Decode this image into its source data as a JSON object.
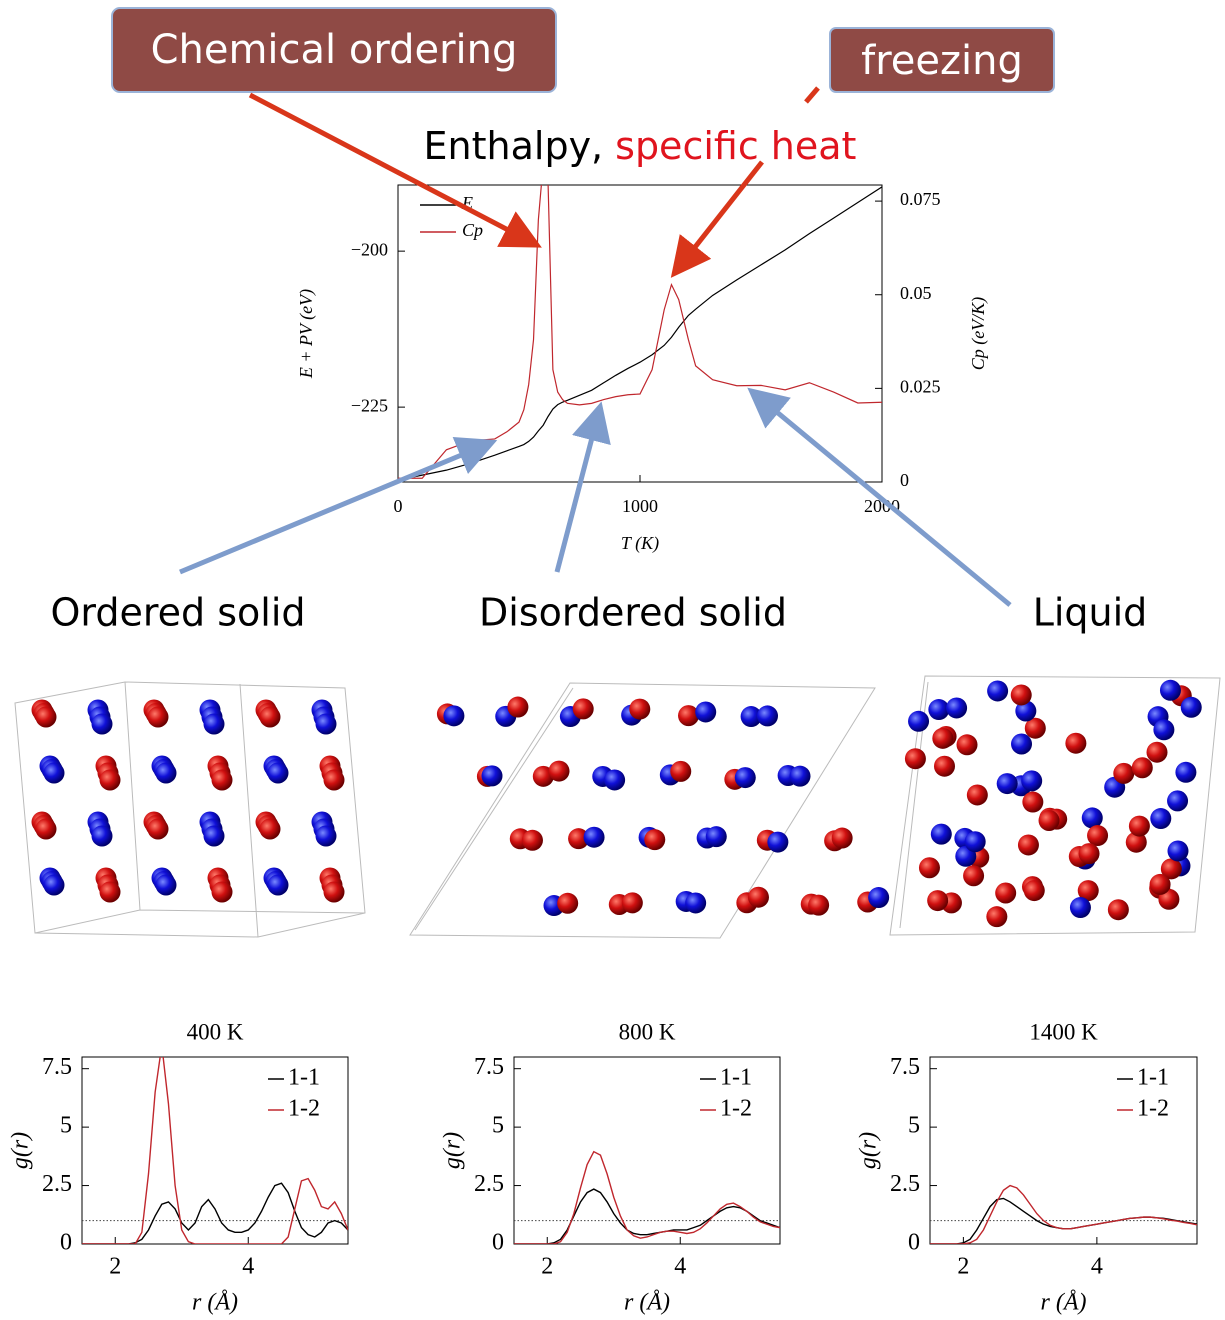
{
  "callouts": [
    "Chemical ordering",
    "freezing"
  ],
  "phases": [
    "Ordered solid",
    "Disordered solid",
    "Liquid"
  ],
  "chart_data": [
    {
      "type": "line",
      "title": "Enthalpy,",
      "title_highlight": "specific heat",
      "xlabel": "T (K)",
      "ylabel": "E + PV (eV)",
      "y2label": "Cp (eV/K)",
      "x": [
        0,
        100,
        200,
        300,
        400,
        450,
        500,
        520,
        540,
        560,
        580,
        600,
        620,
        640,
        660,
        680,
        700,
        750,
        800,
        850,
        900,
        950,
        1000,
        1050,
        1100,
        1130,
        1160,
        1200,
        1230,
        1300,
        1400,
        1500,
        1600,
        1700,
        1800,
        1900,
        2000
      ],
      "series": [
        {
          "name": "E",
          "color": "#000000",
          "values": [
            -236.7,
            -235.9,
            -235.1,
            -234,
            -232.7,
            -232,
            -231.3,
            -231,
            -230.5,
            -229.8,
            -228.8,
            -227.9,
            -226.5,
            -225.3,
            -224.6,
            -224.2,
            -223.9,
            -223.1,
            -222.3,
            -221.1,
            -219.9,
            -218.8,
            -217.8,
            -216.6,
            -215.1,
            -213.8,
            -212.2,
            -210.3,
            -209.3,
            -207.1,
            -204.6,
            -202.2,
            -199.8,
            -197.2,
            -194.7,
            -192.2,
            -189.7
          ]
        },
        {
          "name": "Cp",
          "color": "#c0272d",
          "axis": "y2",
          "values": [
            0.001,
            0.001,
            0.0086,
            0.011,
            0.0115,
            0.0134,
            0.016,
            0.0193,
            0.026,
            0.038,
            0.07,
            0.085,
            0.08,
            0.03,
            0.024,
            0.022,
            0.021,
            0.0206,
            0.021,
            0.022,
            0.0228,
            0.0233,
            0.0235,
            0.03,
            0.046,
            0.0527,
            0.0487,
            0.038,
            0.031,
            0.0273,
            0.0257,
            0.0258,
            0.0246,
            0.0265,
            0.024,
            0.0211,
            0.0213
          ]
        }
      ],
      "xlim": [
        0,
        2000
      ],
      "xticks": [
        0,
        1000,
        2000
      ],
      "ylim": [
        -237,
        -189.4
      ],
      "yticks": [
        {
          "value": -200,
          "label": "−200"
        },
        {
          "value": -225,
          "label": "−225"
        }
      ],
      "y2lim": [
        0,
        0.0793
      ],
      "y2ticks": [
        0,
        0.025,
        0.05,
        0.075
      ],
      "legend": "upper left"
    },
    {
      "type": "line",
      "title": "400 K",
      "xlabel": "r (Å)",
      "ylabel": "g(r)",
      "x": [
        1.5,
        1.6,
        1.7,
        1.8,
        1.9,
        2.0,
        2.1,
        2.2,
        2.3,
        2.4,
        2.5,
        2.6,
        2.7,
        2.8,
        2.9,
        3.0,
        3.1,
        3.2,
        3.3,
        3.4,
        3.5,
        3.6,
        3.7,
        3.8,
        3.9,
        4.0,
        4.1,
        4.2,
        4.3,
        4.4,
        4.5,
        4.6,
        4.7,
        4.8,
        4.9,
        5.0,
        5.1,
        5.2,
        5.3,
        5.4,
        5.5
      ],
      "series": [
        {
          "name": "1-1",
          "color": "#000000",
          "values": [
            0,
            0,
            0,
            0,
            0,
            0,
            0,
            0,
            0.05,
            0.2,
            0.6,
            1.2,
            1.7,
            1.8,
            1.5,
            0.9,
            0.6,
            0.9,
            1.6,
            1.9,
            1.5,
            0.9,
            0.6,
            0.5,
            0.5,
            0.6,
            0.9,
            1.4,
            2.0,
            2.5,
            2.6,
            2.2,
            1.4,
            0.7,
            0.4,
            0.3,
            0.5,
            0.9,
            1.0,
            0.9,
            0.6
          ]
        },
        {
          "name": "1-2",
          "color": "#c0272d",
          "values": [
            0,
            0,
            0,
            0,
            0,
            0,
            0,
            0,
            0,
            0.5,
            3.0,
            6.5,
            8.5,
            6.0,
            2.5,
            0.6,
            0.1,
            0,
            0,
            0,
            0,
            0,
            0,
            0,
            0,
            0,
            0,
            0,
            0,
            0,
            0,
            0.3,
            1.5,
            2.7,
            2.8,
            2.3,
            1.6,
            1.5,
            1.8,
            1.3,
            0.6
          ]
        }
      ],
      "xlim": [
        1.5,
        5.5
      ],
      "xticks": [
        2,
        4
      ],
      "ylim": [
        0,
        8
      ],
      "yticks": [
        0,
        2.5,
        5,
        7.5
      ],
      "hline": 1,
      "legend": "upper right"
    },
    {
      "type": "line",
      "title": "800 K",
      "xlabel": "r (Å)",
      "ylabel": "g(r)",
      "x": [
        1.5,
        1.6,
        1.7,
        1.8,
        1.9,
        2.0,
        2.1,
        2.2,
        2.3,
        2.4,
        2.5,
        2.6,
        2.7,
        2.8,
        2.9,
        3.0,
        3.1,
        3.2,
        3.3,
        3.4,
        3.5,
        3.6,
        3.7,
        3.8,
        3.9,
        4.0,
        4.1,
        4.2,
        4.3,
        4.4,
        4.5,
        4.6,
        4.7,
        4.8,
        4.9,
        5.0,
        5.1,
        5.2,
        5.3,
        5.4,
        5.5
      ],
      "series": [
        {
          "name": "1-1",
          "color": "#000000",
          "values": [
            0,
            0,
            0,
            0,
            0,
            0,
            0.05,
            0.2,
            0.6,
            1.2,
            1.8,
            2.2,
            2.35,
            2.2,
            1.8,
            1.3,
            0.9,
            0.6,
            0.45,
            0.4,
            0.4,
            0.45,
            0.5,
            0.55,
            0.6,
            0.6,
            0.6,
            0.7,
            0.8,
            1.0,
            1.2,
            1.4,
            1.55,
            1.6,
            1.55,
            1.4,
            1.2,
            1.0,
            0.9,
            0.8,
            0.7
          ]
        },
        {
          "name": "1-2",
          "color": "#c0272d",
          "values": [
            0,
            0,
            0,
            0,
            0,
            0,
            0,
            0.1,
            0.5,
            1.3,
            2.4,
            3.4,
            3.95,
            3.8,
            3.0,
            2.0,
            1.2,
            0.6,
            0.35,
            0.25,
            0.3,
            0.4,
            0.5,
            0.55,
            0.55,
            0.5,
            0.45,
            0.5,
            0.65,
            0.9,
            1.2,
            1.5,
            1.7,
            1.75,
            1.6,
            1.4,
            1.15,
            0.95,
            0.85,
            0.75,
            0.7
          ]
        }
      ],
      "xlim": [
        1.5,
        5.5
      ],
      "xticks": [
        2,
        4
      ],
      "ylim": [
        0,
        8
      ],
      "yticks": [
        0,
        2.5,
        5,
        7.5
      ],
      "hline": 1,
      "legend": "upper right"
    },
    {
      "type": "line",
      "title": "1400 K",
      "xlabel": "r (Å)",
      "ylabel": "g(r)",
      "x": [
        1.5,
        1.6,
        1.7,
        1.8,
        1.9,
        2.0,
        2.1,
        2.2,
        2.3,
        2.4,
        2.5,
        2.6,
        2.7,
        2.8,
        2.9,
        3.0,
        3.1,
        3.2,
        3.3,
        3.4,
        3.5,
        3.6,
        3.7,
        3.8,
        3.9,
        4.0,
        4.1,
        4.2,
        4.3,
        4.4,
        4.5,
        4.6,
        4.7,
        4.8,
        4.9,
        5.0,
        5.1,
        5.2,
        5.3,
        5.4,
        5.5
      ],
      "series": [
        {
          "name": "1-1",
          "color": "#000000",
          "values": [
            0,
            0,
            0,
            0,
            0,
            0.05,
            0.2,
            0.6,
            1.1,
            1.6,
            1.9,
            1.95,
            1.8,
            1.6,
            1.4,
            1.2,
            1.0,
            0.85,
            0.75,
            0.7,
            0.65,
            0.65,
            0.7,
            0.75,
            0.8,
            0.85,
            0.9,
            0.95,
            1.0,
            1.05,
            1.1,
            1.12,
            1.15,
            1.15,
            1.12,
            1.1,
            1.05,
            1.0,
            0.95,
            0.9,
            0.85
          ]
        },
        {
          "name": "1-2",
          "color": "#c0272d",
          "values": [
            0,
            0,
            0,
            0,
            0,
            0,
            0.05,
            0.2,
            0.6,
            1.2,
            1.8,
            2.3,
            2.5,
            2.4,
            2.1,
            1.7,
            1.3,
            1.0,
            0.8,
            0.7,
            0.65,
            0.65,
            0.7,
            0.75,
            0.8,
            0.85,
            0.9,
            0.95,
            1.0,
            1.05,
            1.1,
            1.12,
            1.15,
            1.15,
            1.12,
            1.08,
            1.02,
            0.98,
            0.92,
            0.88,
            0.82
          ]
        }
      ],
      "xlim": [
        1.5,
        5.5
      ],
      "xticks": [
        2,
        4
      ],
      "ylim": [
        0,
        8
      ],
      "yticks": [
        0,
        2.5,
        5,
        7.5
      ],
      "hline": 1,
      "legend": "upper right"
    }
  ]
}
